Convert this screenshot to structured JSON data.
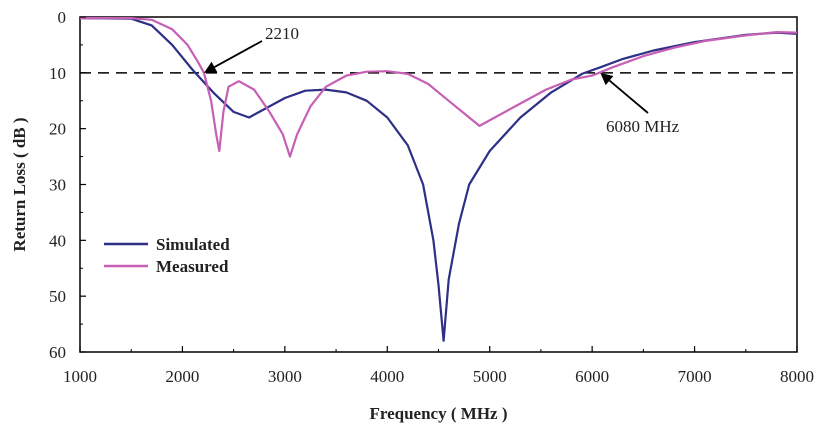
{
  "chart_data": {
    "type": "line",
    "title": "",
    "xlabel": "Frequency ( MHz )",
    "ylabel": "Return Loss ( dB )",
    "xlim": [
      1000,
      8000
    ],
    "ylim": [
      0,
      60
    ],
    "y_inverted": true,
    "grid": false,
    "x_ticks": [
      1000,
      2000,
      3000,
      4000,
      5000,
      6000,
      7000,
      8000
    ],
    "y_ticks": [
      0,
      10,
      20,
      30,
      40,
      50,
      60
    ],
    "x_tick_labels": [
      "1000",
      "2000",
      "3000",
      "4000",
      "5000",
      "6000",
      "7000",
      "8000"
    ],
    "y_tick_labels": [
      "0",
      "10",
      "20",
      "30",
      "40",
      "50",
      "60"
    ],
    "reference_line": {
      "y": 10,
      "style": "dashed",
      "color": "#000000"
    },
    "legend": {
      "placement": "lower-left"
    },
    "series": [
      {
        "name": "Simulated",
        "color": "#2e2f86",
        "points": [
          [
            1000,
            0.2
          ],
          [
            1500,
            0.3
          ],
          [
            1700,
            1.5
          ],
          [
            1900,
            5
          ],
          [
            2100,
            9.5
          ],
          [
            2300,
            13.5
          ],
          [
            2500,
            17
          ],
          [
            2650,
            18
          ],
          [
            2800,
            16.5
          ],
          [
            3000,
            14.5
          ],
          [
            3200,
            13.2
          ],
          [
            3400,
            13
          ],
          [
            3600,
            13.5
          ],
          [
            3800,
            15
          ],
          [
            4000,
            18
          ],
          [
            4200,
            23
          ],
          [
            4350,
            30
          ],
          [
            4450,
            40
          ],
          [
            4500,
            48
          ],
          [
            4550,
            58
          ],
          [
            4600,
            47
          ],
          [
            4700,
            37
          ],
          [
            4800,
            30
          ],
          [
            5000,
            24
          ],
          [
            5300,
            18
          ],
          [
            5600,
            13.5
          ],
          [
            5900,
            10.2
          ],
          [
            6080,
            9
          ],
          [
            6300,
            7.5
          ],
          [
            6600,
            6
          ],
          [
            7000,
            4.5
          ],
          [
            7500,
            3.2
          ],
          [
            7800,
            2.8
          ],
          [
            8000,
            3
          ]
        ]
      },
      {
        "name": "Measured",
        "color": "#c75fb4",
        "points": [
          [
            1000,
            0.2
          ],
          [
            1500,
            0.2
          ],
          [
            1700,
            0.5
          ],
          [
            1900,
            2.2
          ],
          [
            2050,
            5
          ],
          [
            2150,
            8
          ],
          [
            2210,
            10
          ],
          [
            2280,
            15
          ],
          [
            2330,
            21
          ],
          [
            2360,
            24
          ],
          [
            2400,
            17
          ],
          [
            2450,
            12.5
          ],
          [
            2550,
            11.5
          ],
          [
            2700,
            13
          ],
          [
            2850,
            17
          ],
          [
            2980,
            21
          ],
          [
            3050,
            25
          ],
          [
            3120,
            21
          ],
          [
            3250,
            16
          ],
          [
            3400,
            12.5
          ],
          [
            3600,
            10.5
          ],
          [
            3800,
            9.8
          ],
          [
            4000,
            9.7
          ],
          [
            4200,
            10.2
          ],
          [
            4400,
            12
          ],
          [
            4600,
            15
          ],
          [
            4800,
            18
          ],
          [
            4900,
            19.5
          ],
          [
            5050,
            18
          ],
          [
            5300,
            15.5
          ],
          [
            5550,
            13
          ],
          [
            5800,
            11.2
          ],
          [
            6000,
            10.5
          ],
          [
            6200,
            9
          ],
          [
            6500,
            7
          ],
          [
            6800,
            5.5
          ],
          [
            7100,
            4.3
          ],
          [
            7500,
            3.3
          ],
          [
            7800,
            2.7
          ],
          [
            8000,
            2.8
          ]
        ]
      }
    ],
    "annotations": [
      {
        "text": "2210",
        "target": [
          2210,
          10
        ]
      },
      {
        "text": "6080 MHz",
        "target": [
          6080,
          10
        ]
      }
    ]
  }
}
